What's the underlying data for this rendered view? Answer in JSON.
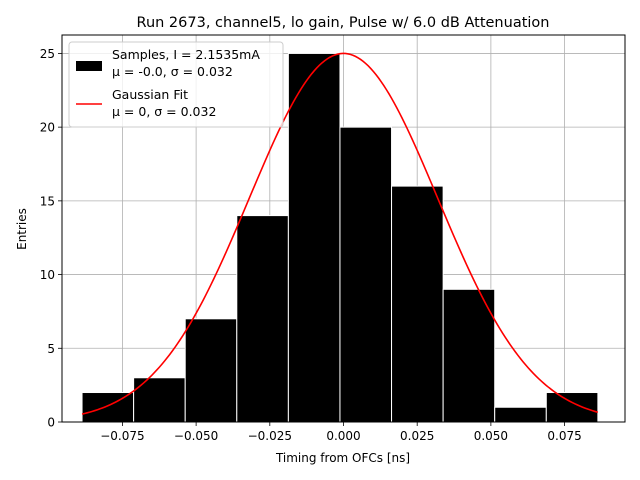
{
  "chart_data": {
    "type": "bar",
    "title": "Run 2673, channel5, lo gain, Pulse w/ 6.0 dB Attenuation",
    "xlabel": "Timing from OFCs [ns]",
    "ylabel": "Entries",
    "xlim": [
      -0.0955,
      0.0955
    ],
    "ylim": [
      0,
      26.25
    ],
    "grid": true,
    "legend_position": "upper-left",
    "xticks": [
      {
        "v": -0.075,
        "label": "−0.075"
      },
      {
        "v": -0.05,
        "label": "−0.050"
      },
      {
        "v": -0.025,
        "label": "−0.025"
      },
      {
        "v": 0.0,
        "label": "0.000"
      },
      {
        "v": 0.025,
        "label": "0.025"
      },
      {
        "v": 0.05,
        "label": "0.050"
      },
      {
        "v": 0.075,
        "label": "0.075"
      }
    ],
    "yticks": [
      {
        "v": 0,
        "label": "0"
      },
      {
        "v": 5,
        "label": "5"
      },
      {
        "v": 10,
        "label": "10"
      },
      {
        "v": 15,
        "label": "15"
      },
      {
        "v": 20,
        "label": "20"
      },
      {
        "v": 25,
        "label": "25"
      }
    ],
    "histogram": {
      "name": "Samples, I = 2.1535mA",
      "stats": "μ = -0.0, σ = 0.032",
      "color": "#000000",
      "edge_color": "#ffffff",
      "bin_edges": [
        -0.0887,
        -0.0712,
        -0.0537,
        -0.0362,
        -0.0187,
        -0.0012,
        0.0163,
        0.0338,
        0.0513,
        0.0688,
        0.0863
      ],
      "counts": [
        2,
        3,
        7,
        14,
        25,
        20,
        16,
        9,
        1,
        2
      ]
    },
    "fit": {
      "name": "Gaussian Fit",
      "stats": "μ = 0, σ = 0.032",
      "color": "#ff0000",
      "mu": 0.0,
      "sigma": 0.032,
      "amplitude": 25,
      "x_range": [
        -0.0887,
        0.0863
      ]
    }
  }
}
